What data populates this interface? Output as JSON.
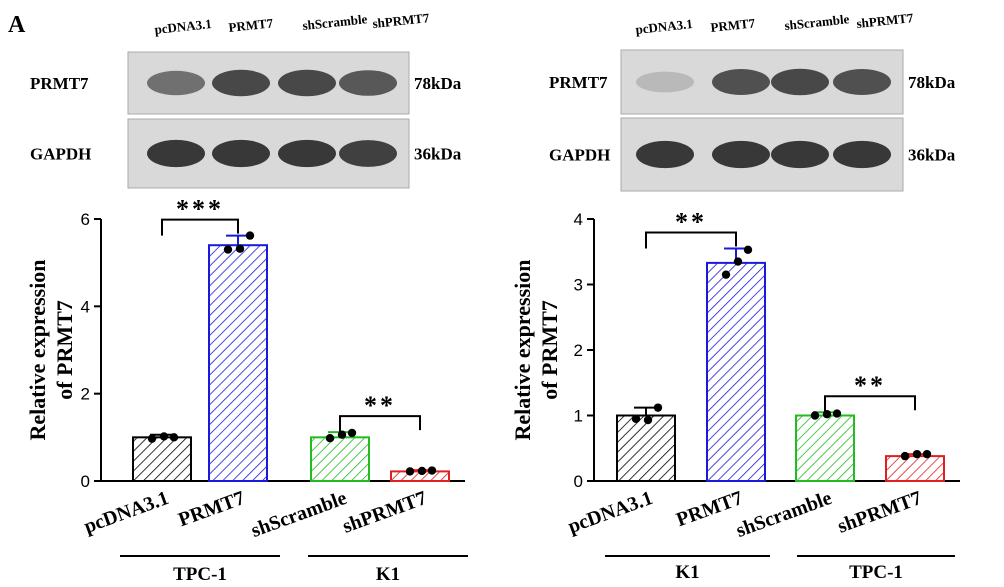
{
  "panel_label": "A",
  "colors": {
    "pcDNA3.1": "#000000",
    "PRMT7": "#1a1adc",
    "shScramble": "#22bb22",
    "shPRMT7": "#e02020"
  },
  "blots": [
    {
      "lanes": [
        "pcDNA3.1",
        "PRMT7",
        "shScramble",
        "shPRMT7"
      ],
      "rows": [
        {
          "protein": "PRMT7",
          "size": "78kDa",
          "intensity": [
            0.55,
            0.8,
            0.8,
            0.7
          ]
        },
        {
          "protein": "GAPDH",
          "size": "36kDa",
          "intensity": [
            0.9,
            0.9,
            0.9,
            0.85
          ]
        }
      ]
    },
    {
      "lanes": [
        "pcDNA3.1",
        "PRMT7",
        "shScramble",
        "shPRMT7"
      ],
      "rows": [
        {
          "protein": "PRMT7",
          "size": "78kDa",
          "intensity": [
            0.1,
            0.75,
            0.8,
            0.75
          ]
        },
        {
          "protein": "GAPDH",
          "size": "36kDa",
          "intensity": [
            0.9,
            0.9,
            0.9,
            0.9
          ]
        }
      ]
    }
  ],
  "chart_data": [
    {
      "type": "bar",
      "ylabel": [
        "Relative expression",
        "of PRMT7"
      ],
      "ylim": [
        0,
        6
      ],
      "yticks": [
        0,
        2,
        4,
        6
      ],
      "categories": [
        "pcDNA3.1",
        "PRMT7",
        "shScramble",
        "shPRMT7"
      ],
      "values": [
        1.0,
        5.4,
        1.0,
        0.22
      ],
      "errors": [
        0.06,
        0.22,
        0.12,
        0.03
      ],
      "points": [
        [
          0.97,
          1.02,
          1.0
        ],
        [
          5.3,
          5.32,
          5.62
        ],
        [
          0.98,
          1.06,
          1.1
        ],
        [
          0.22,
          0.23,
          0.24
        ]
      ],
      "groups": [
        {
          "label": "TPC-1",
          "from": 0,
          "to": 1
        },
        {
          "label": "K1",
          "from": 2,
          "to": 3
        }
      ],
      "significance": [
        {
          "from": 0,
          "to": 1,
          "label": "***"
        },
        {
          "from": 2,
          "to": 3,
          "label": "**"
        }
      ]
    },
    {
      "type": "bar",
      "ylabel": [
        "Relative expression",
        "of PRMT7"
      ],
      "ylim": [
        0,
        4
      ],
      "yticks": [
        0,
        1,
        2,
        3,
        4
      ],
      "categories": [
        "pcDNA3.1",
        "PRMT7",
        "shScramble",
        "shPRMT7"
      ],
      "values": [
        1.0,
        3.33,
        1.0,
        0.38
      ],
      "errors": [
        0.12,
        0.22,
        0.05,
        0.03
      ],
      "points": [
        [
          0.95,
          0.93,
          1.12
        ],
        [
          3.15,
          3.35,
          3.53
        ],
        [
          1.0,
          1.02,
          1.03
        ],
        [
          0.38,
          0.41,
          0.41
        ]
      ],
      "groups": [
        {
          "label": "K1",
          "from": 0,
          "to": 1
        },
        {
          "label": "TPC-1",
          "from": 2,
          "to": 3
        }
      ],
      "significance": [
        {
          "from": 0,
          "to": 1,
          "label": "**"
        },
        {
          "from": 2,
          "to": 3,
          "label": "**"
        }
      ]
    }
  ]
}
